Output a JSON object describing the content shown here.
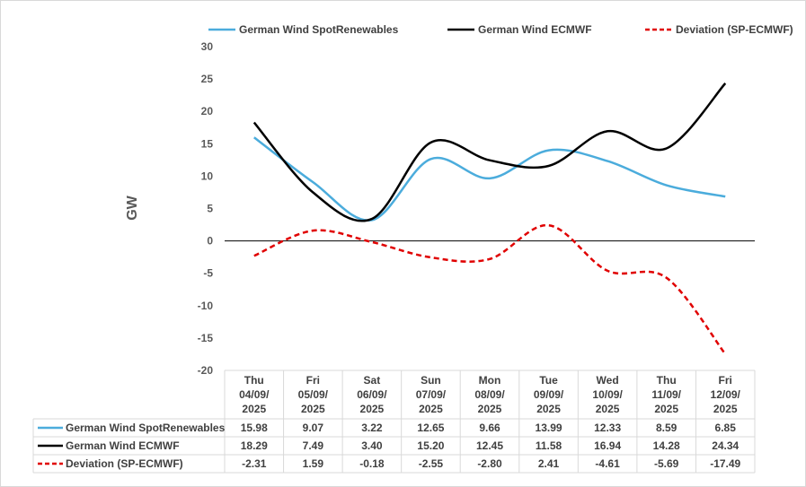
{
  "chart_data": {
    "type": "line",
    "title": "",
    "xlabel": "",
    "ylabel": "GW",
    "ylim": [
      -20,
      30
    ],
    "yticks": [
      30,
      25,
      20,
      15,
      10,
      5,
      0,
      -5,
      -10,
      -15,
      -20
    ],
    "categories": [
      [
        "Thu",
        "04/09/",
        "2025"
      ],
      [
        "Fri",
        "05/09/",
        "2025"
      ],
      [
        "Sat",
        "06/09/",
        "2025"
      ],
      [
        "Sun",
        "07/09/",
        "2025"
      ],
      [
        "Mon",
        "08/09/",
        "2025"
      ],
      [
        "Tue",
        "09/09/",
        "2025"
      ],
      [
        "Wed",
        "10/09/",
        "2025"
      ],
      [
        "Thu",
        "11/09/",
        "2025"
      ],
      [
        "Fri",
        "12/09/",
        "2025"
      ]
    ],
    "legend_position": "top",
    "data_table": true,
    "series": [
      {
        "name": "German Wind SpotRenewables",
        "color": "#4bacdc",
        "dash": "solid",
        "values": [
          15.98,
          9.07,
          3.22,
          12.65,
          9.66,
          13.99,
          12.33,
          8.59,
          6.85
        ],
        "labels": [
          "15.98",
          "9.07",
          "3.22",
          "12.65",
          "9.66",
          "13.99",
          "12.33",
          "8.59",
          "6.85"
        ]
      },
      {
        "name": "German Wind ECMWF",
        "color": "#000000",
        "dash": "solid",
        "values": [
          18.29,
          7.49,
          3.4,
          15.2,
          12.45,
          11.58,
          16.94,
          14.28,
          24.34
        ],
        "labels": [
          "18.29",
          "7.49",
          "3.40",
          "15.20",
          "12.45",
          "11.58",
          "16.94",
          "14.28",
          "24.34"
        ]
      },
      {
        "name": "Deviation (SP-ECMWF)",
        "color": "#e00000",
        "dash": "dashed",
        "values": [
          -2.31,
          1.59,
          -0.18,
          -2.55,
          -2.8,
          2.41,
          -4.61,
          -5.69,
          -17.49
        ],
        "labels": [
          "-2.31",
          "1.59",
          "-0.18",
          "-2.55",
          "-2.80",
          "2.41",
          "-4.61",
          "-5.69",
          "-17.49"
        ]
      }
    ]
  }
}
